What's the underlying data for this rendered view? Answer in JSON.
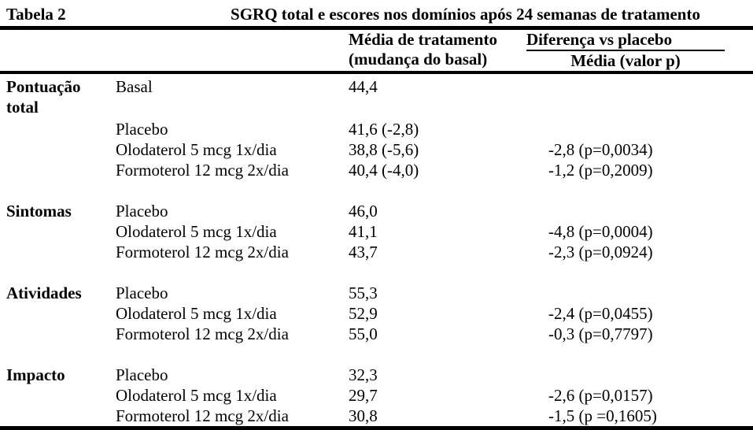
{
  "title": {
    "label": "Tabela 2",
    "caption": "SGRQ total e escores nos domínios após 24 semanas de tratamento"
  },
  "header": {
    "treatment_mean_line1": "Média de tratamento",
    "treatment_mean_line2": "(mudança do basal)",
    "diff_line1": "Diferença vs placebo",
    "diff_line2": "Média (valor p)"
  },
  "colors": {
    "text": "#000000",
    "background": "#ffffff",
    "rule": "#000000"
  },
  "sections": [
    {
      "name": "Pontuação total",
      "rows": [
        {
          "treatment": "Basal",
          "media": "44,4",
          "diff": ""
        },
        {
          "treatment": "Placebo",
          "media": "41,6 (-2,8)",
          "diff": ""
        },
        {
          "treatment": "Olodaterol 5 mcg 1x/dia",
          "media": "38,8 (-5,6)",
          "diff": "-2,8 (p=0,0034)"
        },
        {
          "treatment": "Formoterol 12 mcg 2x/dia",
          "media": "40,4 (-4,0)",
          "diff": "-1,2 (p=0,2009)"
        }
      ]
    },
    {
      "name": "Sintomas",
      "rows": [
        {
          "treatment": "Placebo",
          "media": "46,0",
          "diff": ""
        },
        {
          "treatment": "Olodaterol 5 mcg 1x/dia",
          "media": "41,1",
          "diff": "-4,8 (p=0,0004)"
        },
        {
          "treatment": "Formoterol 12 mcg 2x/dia",
          "media": "43,7",
          "diff": "-2,3 (p=0,0924)"
        }
      ]
    },
    {
      "name": "Atividades",
      "rows": [
        {
          "treatment": "Placebo",
          "media": "55,3",
          "diff": ""
        },
        {
          "treatment": "Olodaterol 5 mcg 1x/dia",
          "media": "52,9",
          "diff": "-2,4 (p=0,0455)"
        },
        {
          "treatment": "Formoterol 12 mcg 2x/dia",
          "media": "55,0",
          "diff": "-0,3 (p=0,7797)"
        }
      ]
    },
    {
      "name": "Impacto",
      "rows": [
        {
          "treatment": "Placebo",
          "media": "32,3",
          "diff": ""
        },
        {
          "treatment": "Olodaterol 5 mcg 1x/dia",
          "media": "29,7",
          "diff": "-2,6 (p=0,0157)"
        },
        {
          "treatment": "Formoterol 12 mcg 2x/dia",
          "media": "30,8",
          "diff": "-1,5 (p =0,1605)"
        }
      ]
    }
  ]
}
